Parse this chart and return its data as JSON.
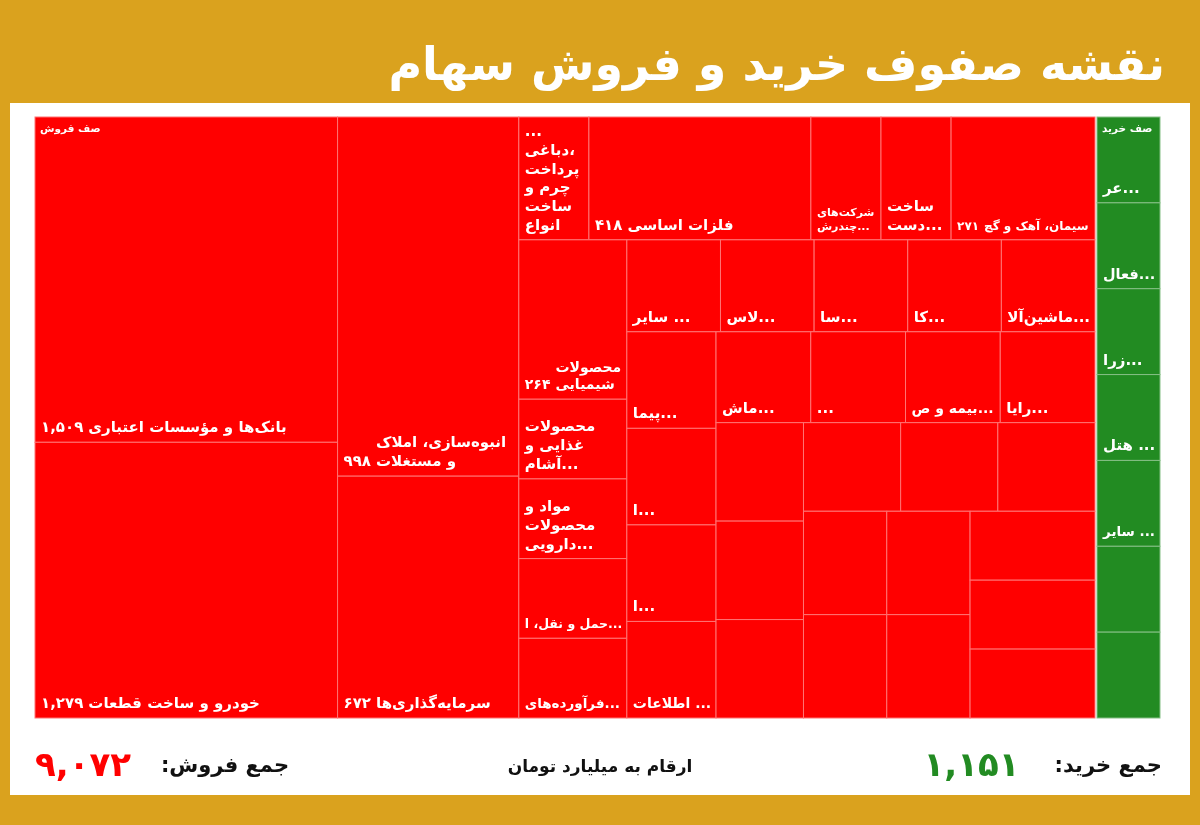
{
  "chart_data": [
    {
      "type": "other",
      "title": "نقشه صفوف خرید و فروش سهام",
      "subtitle": "صف فروش",
      "color": "#ff0000",
      "categories": [
        "بانک‌ها و مؤسسات اعتباری",
        "خودرو و ساخت قطعات",
        "انبوه‌سازی، املاک و مستغلات",
        "سرمایه‌گذاری‌ها",
        "... دباغی، پرداخت چرم و ساخت انواع",
        "فلزات اساسی",
        "شرکت‌های چندرش...",
        "ساخت دست...",
        "سیمان، آهک و گچ",
        "محصولات شیمیایی",
        "محصولات غذایی و آشام...",
        "مواد و محصولات دارویی...",
        "حمل و نقل، ا...",
        "فرآورده‌های...",
        "سایر ...",
        "لاس...",
        "سا...",
        "کا...",
        "ماشین‌آلا...",
        "پیما...",
        "ا...",
        "ا...",
        "اطلاعات ...",
        "ماش...",
        "...",
        "بیمه و ص...",
        "رایا...",
        null,
        null,
        null,
        null,
        null,
        null,
        null,
        null,
        null,
        null,
        null,
        null,
        null
      ],
      "values": [
        1509,
        1279,
        998,
        672,
        null,
        418,
        null,
        null,
        271,
        264,
        null,
        null,
        null,
        null,
        null,
        null,
        null,
        null,
        null,
        null,
        null,
        null,
        null,
        null,
        null,
        null,
        null,
        null,
        null,
        null,
        null,
        null,
        null,
        null,
        null,
        null,
        null,
        null,
        null,
        null
      ],
      "value_labels": [
        "۱,۵۰۹",
        "۱,۲۷۹",
        "۹۹۸",
        "۶۷۲",
        null,
        "۴۱۸",
        null,
        null,
        "۲۷۱",
        "۲۶۴",
        null,
        null,
        null,
        null,
        null,
        null,
        null,
        null,
        null,
        null,
        null,
        null,
        null,
        null,
        null,
        null,
        null,
        null,
        null,
        null,
        null,
        null,
        null,
        null,
        null,
        null,
        null,
        null,
        null,
        null
      ],
      "annotations": [
        "جمع فروش:",
        "۹,۰۷۲",
        "ارقام به میلیارد تومان"
      ]
    },
    {
      "type": "other",
      "subtitle": "صف خرید",
      "color": "#228b22",
      "categories": [
        "عر...",
        "فعال...",
        "زرا...",
        "هتل ...",
        "سایر ...",
        null,
        null
      ],
      "values": [
        null,
        null,
        null,
        null,
        null,
        null,
        null
      ],
      "annotations": [
        "جمع خرید:",
        "۱,۱۵۱"
      ]
    }
  ]
}
